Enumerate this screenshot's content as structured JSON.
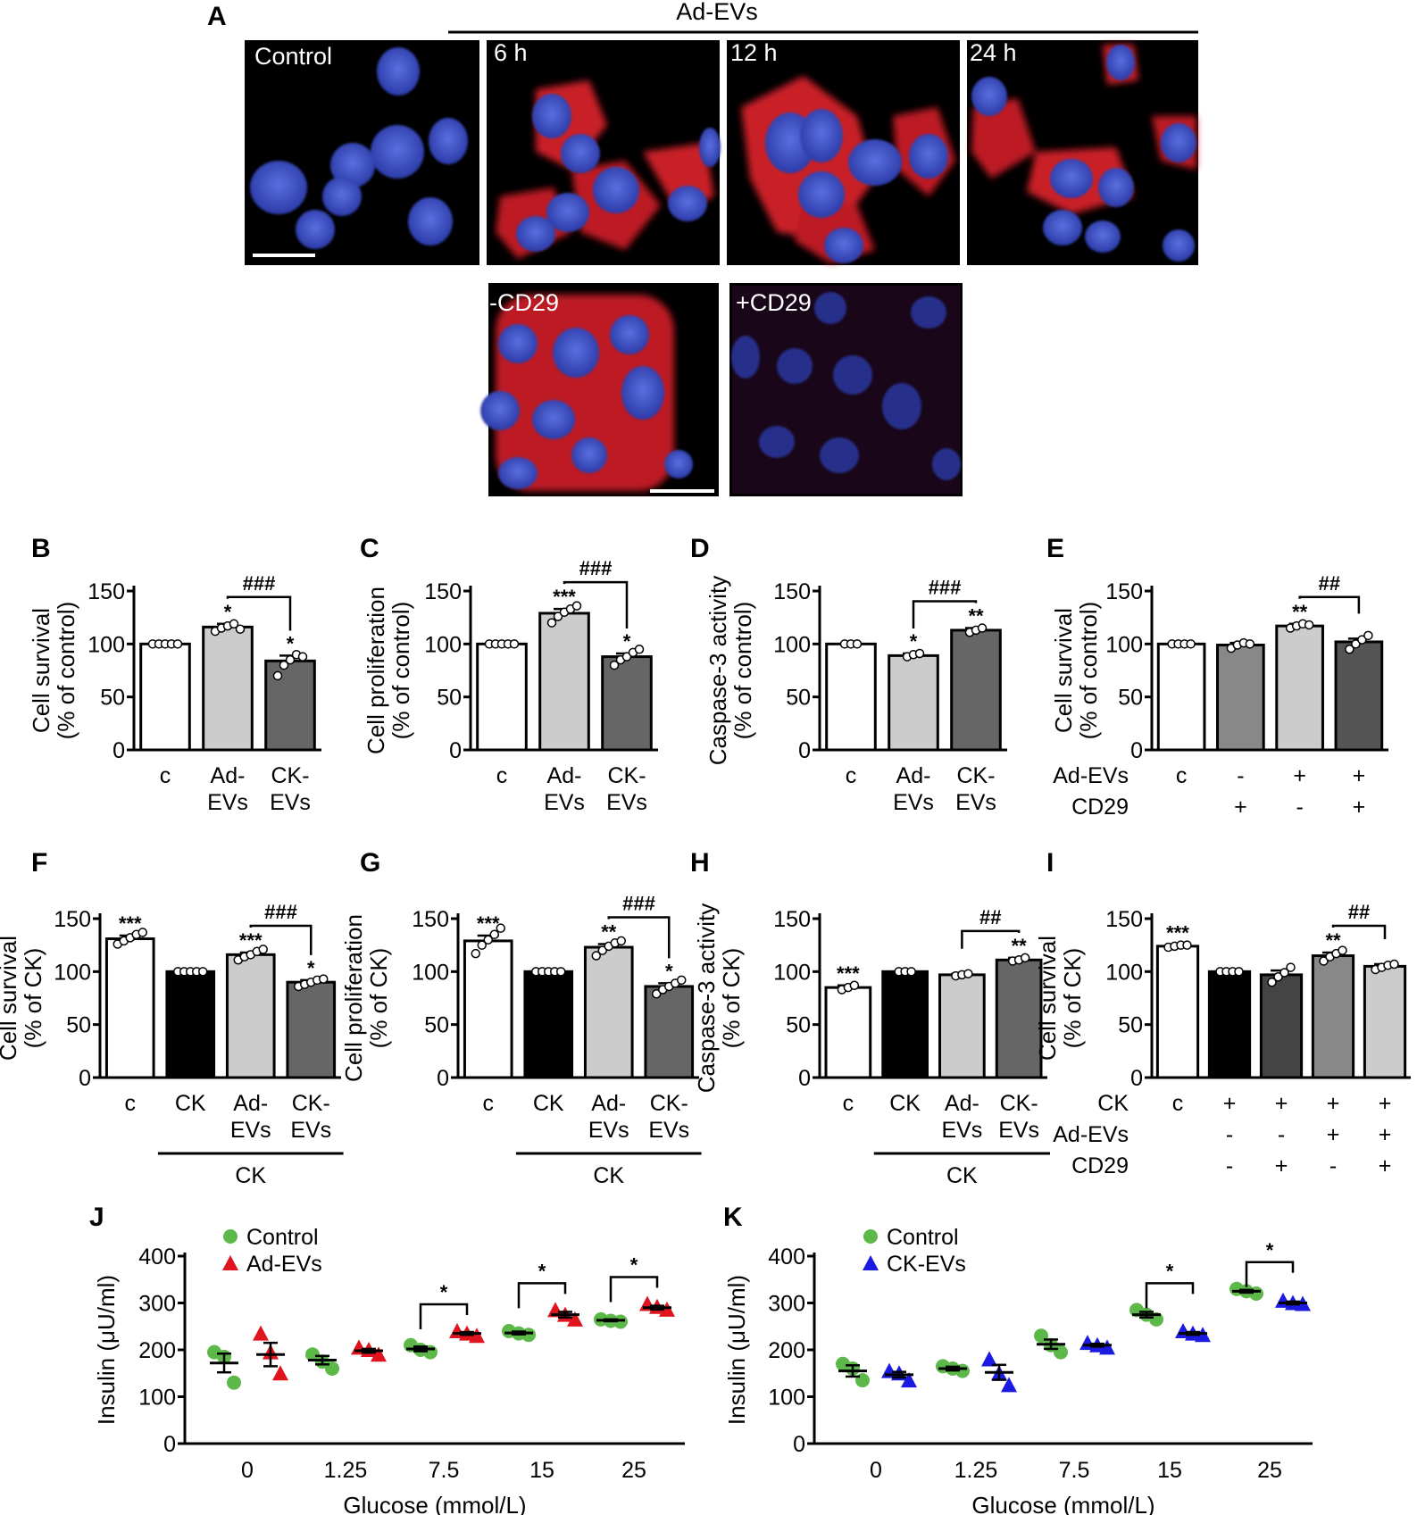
{
  "figure": {
    "panel_A": {
      "letter": "A",
      "header": "Ad-EVs",
      "images": [
        {
          "label": "Control"
        },
        {
          "label": "6 h"
        },
        {
          "label": "12 h"
        },
        {
          "label": "24 h"
        },
        {
          "label": "-CD29"
        },
        {
          "label": "+CD29"
        }
      ],
      "colors": {
        "nucleus": "#3b4fc9",
        "signal": "#e0202a",
        "background": "#000000"
      }
    }
  },
  "chart_data": [
    {
      "panel": "B",
      "type": "bar",
      "ylabel": [
        "Cell survival",
        "(% of control)"
      ],
      "ylim": [
        0,
        150
      ],
      "yticks": [
        "0",
        "50",
        "100",
        "150"
      ],
      "categories": [
        [
          "c"
        ],
        [
          "Ad-",
          "EVs"
        ],
        [
          "CK-",
          "EVs"
        ]
      ],
      "values": [
        100,
        116,
        84
      ],
      "errors": [
        0,
        3,
        5
      ],
      "bar_colors": [
        "#ffffff",
        "#cccccc",
        "#666666"
      ],
      "points": [
        [
          100,
          100,
          100,
          100,
          100
        ],
        [
          112,
          115,
          117,
          119,
          114
        ],
        [
          70,
          80,
          85,
          90,
          88
        ]
      ],
      "stars": [
        "",
        "*",
        "*"
      ],
      "brackets": [
        {
          "from": 1,
          "to": 2,
          "label": "###"
        }
      ]
    },
    {
      "panel": "C",
      "type": "bar",
      "ylabel": [
        "Cell proliferation",
        "(% of control)"
      ],
      "ylim": [
        0,
        150
      ],
      "yticks": [
        "0",
        "50",
        "100",
        "150"
      ],
      "categories": [
        [
          "c"
        ],
        [
          "Ad-",
          "EVs"
        ],
        [
          "CK-",
          "EVs"
        ]
      ],
      "values": [
        100,
        129,
        88
      ],
      "errors": [
        0,
        4,
        3
      ],
      "bar_colors": [
        "#ffffff",
        "#cccccc",
        "#666666"
      ],
      "points": [
        [
          100,
          100,
          100,
          100,
          100
        ],
        [
          120,
          126,
          130,
          133,
          136
        ],
        [
          80,
          85,
          88,
          92,
          95
        ]
      ],
      "stars": [
        "",
        "***",
        "*"
      ],
      "brackets": [
        {
          "from": 1,
          "to": 2,
          "label": "###"
        }
      ]
    },
    {
      "panel": "D",
      "type": "bar",
      "ylabel": [
        "Caspase-3 activity",
        "(% of control)"
      ],
      "ylim": [
        0,
        150
      ],
      "yticks": [
        "0",
        "50",
        "100",
        "150"
      ],
      "categories": [
        [
          "c"
        ],
        [
          "Ad-",
          "EVs"
        ],
        [
          "CK-",
          "EVs"
        ]
      ],
      "values": [
        100,
        89,
        113
      ],
      "errors": [
        0,
        2,
        2
      ],
      "bar_colors": [
        "#ffffff",
        "#cccccc",
        "#666666"
      ],
      "points": [
        [
          100,
          100,
          100
        ],
        [
          88,
          90,
          91
        ],
        [
          111,
          113,
          115
        ]
      ],
      "stars": [
        "",
        "*",
        "**"
      ],
      "brackets": [
        {
          "from": 1,
          "to": 2,
          "label": "###"
        }
      ]
    },
    {
      "panel": "E",
      "type": "bar",
      "ylabel": [
        "Cell survival",
        "(% of control)"
      ],
      "ylim": [
        0,
        150
      ],
      "yticks": [
        "0",
        "50",
        "100",
        "150"
      ],
      "categories": [
        [
          "c"
        ],
        [
          "-",
          "+"
        ],
        [
          "+",
          "-"
        ],
        [
          "+",
          "+"
        ]
      ],
      "table_rows": [
        "Ad-EVs",
        "CD29"
      ],
      "values": [
        100,
        99,
        117,
        102
      ],
      "errors": [
        0,
        2,
        2,
        3
      ],
      "bar_colors": [
        "#ffffff",
        "#888888",
        "#cccccc",
        "#555555"
      ],
      "points": [
        [
          100,
          100,
          100,
          100
        ],
        [
          96,
          99,
          101,
          100
        ],
        [
          115,
          117,
          119,
          118
        ],
        [
          95,
          100,
          104,
          108
        ]
      ],
      "stars": [
        "",
        "",
        "**",
        ""
      ],
      "brackets": [
        {
          "from": 2,
          "to": 3,
          "label": "##"
        }
      ]
    },
    {
      "panel": "F",
      "type": "bar",
      "ylabel": [
        "Cell survival",
        "(% of CK)"
      ],
      "ylim": [
        0,
        150
      ],
      "yticks": [
        "0",
        "50",
        "100",
        "150"
      ],
      "categories": [
        [
          "c"
        ],
        [
          "CK"
        ],
        [
          "Ad-",
          "EVs"
        ],
        [
          "CK-",
          "EVs"
        ]
      ],
      "group_label": "CK",
      "values": [
        131,
        100,
        116,
        90
      ],
      "errors": [
        3,
        0,
        2,
        2
      ],
      "bar_colors": [
        "#ffffff",
        "#000000",
        "#cccccc",
        "#666666"
      ],
      "points": [
        [
          126,
          129,
          132,
          135,
          137
        ],
        [
          100,
          100,
          100,
          100,
          100
        ],
        [
          111,
          114,
          116,
          119,
          121
        ],
        [
          86,
          88,
          90,
          92,
          93
        ]
      ],
      "stars": [
        "***",
        "",
        "***",
        "*"
      ],
      "brackets": [
        {
          "from": 2,
          "to": 3,
          "label": "###"
        }
      ]
    },
    {
      "panel": "G",
      "type": "bar",
      "ylabel": [
        "Cell proliferation",
        "(% of CK)"
      ],
      "ylim": [
        0,
        150
      ],
      "yticks": [
        "0",
        "50",
        "100",
        "150"
      ],
      "categories": [
        [
          "c"
        ],
        [
          "CK"
        ],
        [
          "Ad-",
          "EVs"
        ],
        [
          "CK-",
          "EVs"
        ]
      ],
      "group_label": "CK",
      "values": [
        129,
        100,
        123,
        86
      ],
      "errors": [
        5,
        0,
        3,
        3
      ],
      "bar_colors": [
        "#ffffff",
        "#000000",
        "#cccccc",
        "#666666"
      ],
      "points": [
        [
          117,
          125,
          130,
          135,
          141
        ],
        [
          100,
          100,
          100,
          100,
          100
        ],
        [
          115,
          120,
          124,
          127,
          129
        ],
        [
          79,
          83,
          86,
          89,
          92
        ]
      ],
      "stars": [
        "***",
        "",
        "**",
        "*"
      ],
      "brackets": [
        {
          "from": 2,
          "to": 3,
          "label": "###"
        }
      ]
    },
    {
      "panel": "H",
      "type": "bar",
      "ylabel": [
        "Caspase-3 activity",
        "(% of CK)"
      ],
      "ylim": [
        0,
        150
      ],
      "yticks": [
        "0",
        "50",
        "100",
        "150"
      ],
      "categories": [
        [
          "c"
        ],
        [
          "CK"
        ],
        [
          "Ad-",
          "EVs"
        ],
        [
          "CK-",
          "EVs"
        ]
      ],
      "group_label": "CK",
      "values": [
        85,
        100,
        97,
        111
      ],
      "errors": [
        2,
        0,
        1,
        2
      ],
      "bar_colors": [
        "#ffffff",
        "#000000",
        "#cccccc",
        "#666666"
      ],
      "points": [
        [
          83,
          85,
          87
        ],
        [
          100,
          100,
          100
        ],
        [
          96,
          97,
          98
        ],
        [
          110,
          111,
          113
        ]
      ],
      "stars": [
        "***",
        "",
        "",
        "**"
      ],
      "brackets": [
        {
          "from": 2,
          "to": 3,
          "label": "##"
        }
      ]
    },
    {
      "panel": "I",
      "type": "bar",
      "ylabel": [
        "Cell survival",
        "(% of CK)"
      ],
      "ylim": [
        0,
        150
      ],
      "yticks": [
        "0",
        "50",
        "100",
        "150"
      ],
      "categories": [
        [
          "c"
        ],
        [
          "+",
          "-",
          "-"
        ],
        [
          "+",
          "-",
          "+"
        ],
        [
          "+",
          "+",
          "-"
        ],
        [
          "+",
          "+",
          "+"
        ]
      ],
      "table_rows": [
        "CK",
        "Ad-EVs",
        "CD29"
      ],
      "values": [
        124,
        100,
        97,
        115,
        105
      ],
      "errors": [
        1,
        0,
        4,
        3,
        2
      ],
      "bar_colors": [
        "#ffffff",
        "#000000",
        "#444444",
        "#888888",
        "#cccccc"
      ],
      "points": [
        [
          123,
          124,
          125,
          125
        ],
        [
          100,
          100,
          100,
          100
        ],
        [
          90,
          95,
          99,
          104
        ],
        [
          110,
          114,
          117,
          120
        ],
        [
          102,
          104,
          106,
          107
        ]
      ],
      "stars": [
        "***",
        "",
        "",
        "**",
        ""
      ],
      "brackets": [
        {
          "from": 3,
          "to": 4,
          "label": "##"
        }
      ]
    },
    {
      "panel": "J",
      "type": "scatter",
      "xlabel": "Glucose (mmol/L)",
      "ylabel": "Insulin (μU/ml)",
      "ylim": [
        0,
        400
      ],
      "yticks": [
        "0",
        "100",
        "200",
        "300",
        "400"
      ],
      "categories": [
        "0",
        "1.25",
        "7.5",
        "15",
        "25"
      ],
      "series": [
        {
          "name": "Control",
          "marker": "circle",
          "color": "#5db84a",
          "values": [
            [
              195,
              185,
              130
            ],
            [
              190,
              175,
              160
            ],
            [
              210,
              200,
              195
            ],
            [
              240,
              235,
              232
            ],
            [
              265,
              262,
              260
            ]
          ],
          "mean": [
            172,
            178,
            202,
            236,
            263
          ],
          "sem": [
            20,
            9,
            5,
            3,
            2
          ]
        },
        {
          "name": "Ad-EVs",
          "marker": "triangle",
          "color": "#e0141e",
          "values": [
            [
              235,
              195,
              150
            ],
            [
              205,
              200,
              190
            ],
            [
              240,
              235,
              230
            ],
            [
              285,
              275,
              265
            ],
            [
              298,
              292,
              286
            ]
          ],
          "mean": [
            190,
            198,
            235,
            275,
            290
          ],
          "sem": [
            25,
            4,
            3,
            6,
            4
          ]
        }
      ],
      "stars": [
        "",
        "",
        "*",
        "*",
        "*"
      ]
    },
    {
      "panel": "K",
      "type": "scatter",
      "xlabel": "Glucose (mmol/L)",
      "ylabel": "Insulin (μU/ml)",
      "ylim": [
        0,
        400
      ],
      "yticks": [
        "0",
        "100",
        "200",
        "300",
        "400"
      ],
      "categories": [
        "0",
        "1.25",
        "7.5",
        "15",
        "25"
      ],
      "series": [
        {
          "name": "Control",
          "marker": "circle",
          "color": "#5db84a",
          "values": [
            [
              170,
              160,
              135
            ],
            [
              165,
              160,
              155
            ],
            [
              230,
              210,
              195
            ],
            [
              285,
              275,
              265
            ],
            [
              330,
              325,
              320
            ]
          ],
          "mean": [
            155,
            160,
            212,
            275,
            325
          ],
          "sem": [
            12,
            4,
            10,
            6,
            3
          ]
        },
        {
          "name": "CK-EVs",
          "marker": "triangle",
          "color": "#1a1ae0",
          "values": [
            [
              155,
              150,
              135
            ],
            [
              180,
              150,
              125
            ],
            [
              215,
              210,
              205
            ],
            [
              240,
              235,
              232
            ],
            [
              305,
              300,
              298
            ]
          ],
          "mean": [
            147,
            152,
            210,
            235,
            300
          ],
          "sem": [
            6,
            16,
            3,
            3,
            3
          ]
        }
      ],
      "stars": [
        "",
        "",
        "",
        "*",
        "*"
      ]
    }
  ]
}
